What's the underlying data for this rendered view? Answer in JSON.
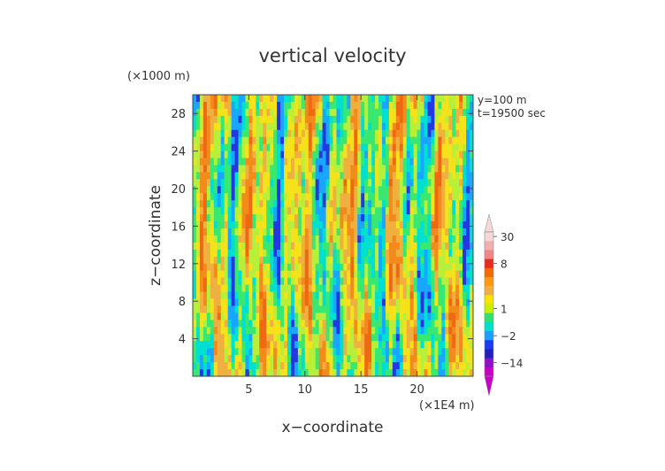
{
  "chart_data": {
    "type": "heatmap",
    "title": "vertical velocity",
    "xlabel": "x−coordinate",
    "ylabel": "z−coordinate",
    "x_unit": "(×1E4 m)",
    "y_unit": "(×1000 m)",
    "annotations": [
      "y=100 m",
      "t=19500 sec"
    ],
    "xlim": [
      0,
      25
    ],
    "ylim": [
      0,
      30
    ],
    "x_ticks": [
      5,
      10,
      15,
      20
    ],
    "y_ticks": [
      4,
      8,
      12,
      16,
      20,
      24,
      28
    ],
    "colorbar": {
      "tick_labels": [
        "30",
        "8",
        "1",
        "−2",
        "−14"
      ],
      "levels": [
        {
          "value": 30,
          "color": "#f6d8d8"
        },
        {
          "value": 20,
          "color": "#f2b0b0"
        },
        {
          "value": 10,
          "color": "#f08888"
        },
        {
          "value": 8,
          "color": "#e82a1e"
        },
        {
          "value": 6,
          "color": "#f26a00"
        },
        {
          "value": 4,
          "color": "#ff9a10"
        },
        {
          "value": 3,
          "color": "#f0b040"
        },
        {
          "value": 2,
          "color": "#f5e500"
        },
        {
          "value": 1,
          "color": "#c8f000"
        },
        {
          "value": 0,
          "color": "#30e070"
        },
        {
          "value": -1,
          "color": "#00e0c8"
        },
        {
          "value": -2,
          "color": "#1aa0ff"
        },
        {
          "value": -4,
          "color": "#1a3cf0"
        },
        {
          "value": -8,
          "color": "#2020c0"
        },
        {
          "value": -14,
          "color": "#9010c8"
        },
        {
          "value": -20,
          "color": "#c800c8"
        }
      ]
    },
    "field_colors": [
      "#2338e0",
      "#19a6ff",
      "#00e0d0",
      "#39e870",
      "#b7ef3a",
      "#f4e31a",
      "#f0b040",
      "#f28a1c",
      "#ee6a12"
    ]
  }
}
